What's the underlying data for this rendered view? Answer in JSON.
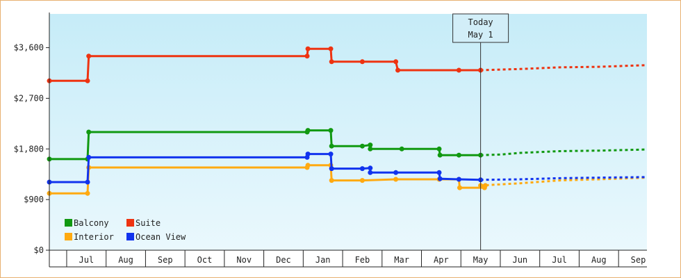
{
  "chart_data": {
    "type": "line",
    "title": "",
    "xlabel": "",
    "ylabel": "",
    "ylim": [
      0,
      4200
    ],
    "yticks": [
      {
        "value": 0,
        "label": "$0"
      },
      {
        "value": 900,
        "label": "$900"
      },
      {
        "value": 1800,
        "label": "$1,800"
      },
      {
        "value": 2700,
        "label": "$2,700"
      },
      {
        "value": 3600,
        "label": "$3,600"
      }
    ],
    "x_unit": "month_index (0 = start of Jul year 1, 12 = start of Jul year 2)",
    "xlim": [
      -0.94,
      14.22
    ],
    "month_labels": [
      "Jul",
      "Aug",
      "Sep",
      "Oct",
      "Nov",
      "Dec",
      "Jan",
      "Feb",
      "Mar",
      "Apr",
      "May",
      "Jun",
      "Jul",
      "Aug",
      "Sep"
    ],
    "today": {
      "x": 10.0,
      "line1": "Today",
      "line2": "May 1"
    },
    "legend": {
      "placement": "bottom-left"
    },
    "grid": false,
    "series": [
      {
        "name": "Balcony",
        "color": "#119911",
        "points": [
          [
            -0.94,
            1620
          ],
          [
            0.03,
            1620
          ],
          [
            0.06,
            2100
          ],
          [
            5.6,
            2100
          ],
          [
            5.62,
            2130
          ],
          [
            6.2,
            2130
          ],
          [
            6.22,
            1850
          ],
          [
            7.0,
            1850
          ],
          [
            7.2,
            1870
          ],
          [
            7.2,
            1800
          ],
          [
            8.0,
            1800
          ],
          [
            8.95,
            1800
          ],
          [
            8.97,
            1690
          ],
          [
            9.45,
            1690
          ],
          [
            10.0,
            1690
          ]
        ],
        "forecast": [
          [
            10.0,
            1690
          ],
          [
            10.5,
            1700
          ],
          [
            11.0,
            1730
          ],
          [
            12.0,
            1760
          ],
          [
            13.0,
            1770
          ],
          [
            14.22,
            1790
          ]
        ]
      },
      {
        "name": "Suite",
        "color": "#ee3311",
        "points": [
          [
            -0.94,
            3010
          ],
          [
            0.03,
            3010
          ],
          [
            0.06,
            3450
          ],
          [
            5.6,
            3450
          ],
          [
            5.62,
            3580
          ],
          [
            6.2,
            3580
          ],
          [
            6.22,
            3350
          ],
          [
            7.0,
            3350
          ],
          [
            7.85,
            3350
          ],
          [
            7.9,
            3200
          ],
          [
            9.45,
            3200
          ],
          [
            10.0,
            3200
          ]
        ],
        "forecast": [
          [
            10.0,
            3200
          ],
          [
            11.0,
            3220
          ],
          [
            12.0,
            3250
          ],
          [
            13.0,
            3260
          ],
          [
            14.22,
            3290
          ]
        ]
      },
      {
        "name": "Interior",
        "color": "#ffaa11",
        "points": [
          [
            -0.94,
            1010
          ],
          [
            0.03,
            1010
          ],
          [
            0.06,
            1470
          ],
          [
            5.6,
            1470
          ],
          [
            5.62,
            1510
          ],
          [
            6.2,
            1510
          ],
          [
            6.22,
            1240
          ],
          [
            7.0,
            1240
          ],
          [
            7.85,
            1260
          ],
          [
            8.95,
            1260
          ],
          [
            9.45,
            1260
          ],
          [
            9.47,
            1110
          ],
          [
            10.1,
            1110
          ],
          [
            10.12,
            1150
          ],
          [
            10.0,
            1150
          ]
        ],
        "forecast": [
          [
            10.0,
            1150
          ],
          [
            11.0,
            1190
          ],
          [
            12.0,
            1240
          ],
          [
            13.0,
            1260
          ],
          [
            14.22,
            1290
          ]
        ]
      },
      {
        "name": "Ocean View",
        "color": "#1133ee",
        "points": [
          [
            -0.94,
            1210
          ],
          [
            0.03,
            1210
          ],
          [
            0.06,
            1650
          ],
          [
            5.6,
            1650
          ],
          [
            5.62,
            1710
          ],
          [
            6.2,
            1710
          ],
          [
            6.22,
            1450
          ],
          [
            7.0,
            1450
          ],
          [
            7.2,
            1460
          ],
          [
            7.2,
            1380
          ],
          [
            7.85,
            1380
          ],
          [
            8.95,
            1380
          ],
          [
            8.97,
            1270
          ],
          [
            9.45,
            1260
          ],
          [
            10.0,
            1250
          ]
        ],
        "forecast": [
          [
            10.0,
            1250
          ],
          [
            11.0,
            1260
          ],
          [
            12.0,
            1280
          ],
          [
            13.0,
            1290
          ],
          [
            14.22,
            1300
          ]
        ]
      }
    ]
  }
}
